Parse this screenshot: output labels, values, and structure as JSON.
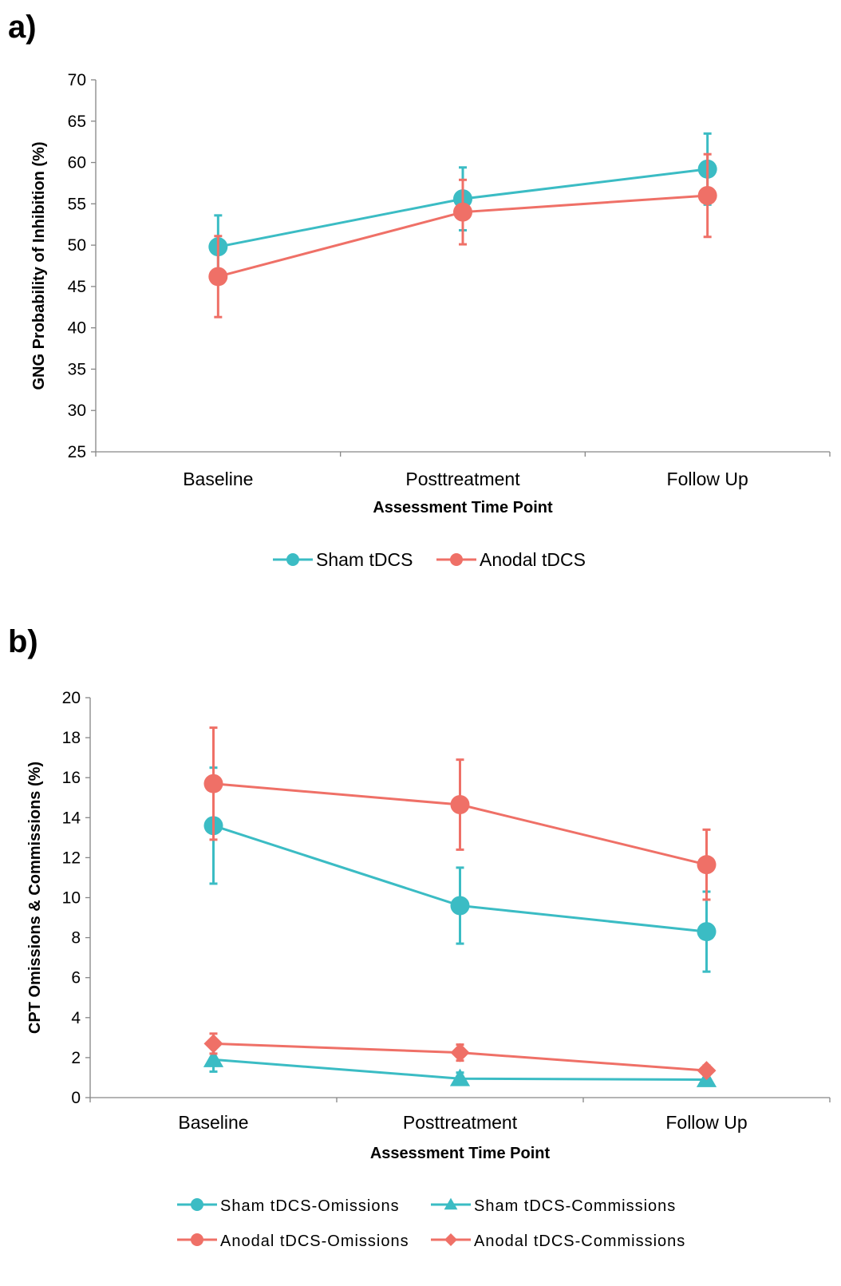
{
  "panels": {
    "a": {
      "label": "a)"
    },
    "b": {
      "label": "b)"
    }
  },
  "colors": {
    "sham": "#3bbcc4",
    "anodal": "#ef7067"
  },
  "chart_data": [
    {
      "id": "a",
      "type": "line",
      "title": "",
      "xlabel": "Assessment Time Point",
      "ylabel": "GNG Probability of Inhibition (%)",
      "categories": [
        "Baseline",
        "Posttreatment",
        "Follow Up"
      ],
      "ylim": [
        25,
        70
      ],
      "ytick_step": 5,
      "grid": false,
      "legend_position": "bottom",
      "series": [
        {
          "name": "Sham tDCS",
          "marker": "circle",
          "color": "#3bbcc4",
          "values": [
            49.8,
            55.6,
            59.2
          ],
          "error": [
            3.8,
            3.8,
            4.3
          ]
        },
        {
          "name": "Anodal tDCS",
          "marker": "circle",
          "color": "#ef7067",
          "values": [
            46.2,
            54.0,
            56.0
          ],
          "error": [
            4.9,
            3.9,
            5.0
          ]
        }
      ]
    },
    {
      "id": "b",
      "type": "line",
      "title": "",
      "xlabel": "Assessment Time Point",
      "ylabel": "CPT Omissions & Commissions (%)",
      "categories": [
        "Baseline",
        "Posttreatment",
        "Follow Up"
      ],
      "ylim": [
        0,
        20
      ],
      "ytick_step": 2,
      "grid": false,
      "legend_position": "bottom",
      "series": [
        {
          "name": "Sham tDCS-Omissions",
          "marker": "circle",
          "color": "#3bbcc4",
          "values": [
            13.6,
            9.6,
            8.3
          ],
          "error": [
            2.9,
            1.9,
            2.0
          ]
        },
        {
          "name": "Sham tDCS-Commissions",
          "marker": "triangle",
          "color": "#3bbcc4",
          "values": [
            1.9,
            0.95,
            0.9
          ],
          "error": [
            0.6,
            0.3,
            0.3
          ]
        },
        {
          "name": "Anodal tDCS-Omissions",
          "marker": "circle",
          "color": "#ef7067",
          "values": [
            15.7,
            14.65,
            11.65
          ],
          "error": [
            2.8,
            2.25,
            1.75
          ]
        },
        {
          "name": "Anodal tDCS-Commissions",
          "marker": "diamond",
          "color": "#ef7067",
          "values": [
            2.7,
            2.25,
            1.35
          ],
          "error": [
            0.5,
            0.4,
            0.25
          ]
        }
      ]
    }
  ]
}
